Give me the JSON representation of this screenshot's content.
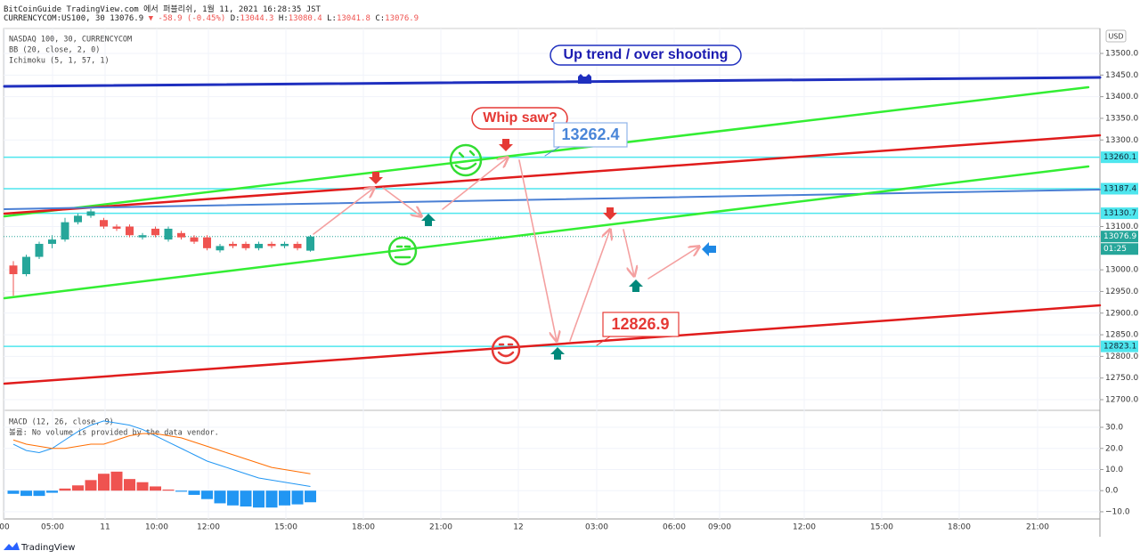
{
  "header": {
    "title": "BitCoinGuide TradingView.com 에서 퍼블리쉬, 1월 11, 2021 16:28:35 JST",
    "symbol": "CURRENCYCOM:US100, 30",
    "last": "13076.9",
    "change": "▼ -58.9 (-0.45%)",
    "ohlc": [
      "D:",
      "13044.3",
      "H:",
      "13080.4",
      "L:",
      "13041.8",
      "C:",
      "13076.9"
    ]
  },
  "legend": [
    "NASDAQ 100, 30, CURRENCYCOM",
    "BB (20, close, 2, 0)",
    "Ichimoku (5, 1, 57, 1)"
  ],
  "chart_data": [
    {
      "type": "candlestick",
      "unit": "USD",
      "ylim": [
        12677.4,
        13557.6
      ],
      "yticks": [
        {
          "value": 13500,
          "label": "13500.0"
        },
        {
          "value": 13450,
          "label": "13450.0"
        },
        {
          "value": 13400,
          "label": "13400.0"
        },
        {
          "value": 13350,
          "label": "13350.0"
        },
        {
          "value": 13300,
          "label": "13300.0"
        },
        {
          "value": 13100,
          "label": "13100.0"
        },
        {
          "value": 13000,
          "label": "13000.0"
        },
        {
          "value": 12950,
          "label": "12950.0"
        },
        {
          "value": 12900,
          "label": "12900.0"
        },
        {
          "value": 12850,
          "label": "12850.0"
        },
        {
          "value": 12800,
          "label": "12800.0"
        },
        {
          "value": 12750,
          "label": "12750.0"
        },
        {
          "value": 12700,
          "label": "12700.0"
        }
      ],
      "open": [
        13010,
        12990,
        13030,
        13060,
        13070,
        13110,
        13125,
        13115,
        13100,
        13100,
        13075,
        13095,
        13070,
        13085,
        13075,
        13075,
        13045,
        13060,
        13060,
        13050,
        13060,
        13055,
        13060,
        13044.3
      ],
      "high": [
        13020,
        13035,
        13065,
        13080,
        13120,
        13130,
        13140,
        13120,
        13105,
        13105,
        13085,
        13100,
        13100,
        13090,
        13080,
        13080,
        13060,
        13065,
        13065,
        13065,
        13065,
        13065,
        13065,
        13080.4
      ],
      "low": [
        12940,
        12985,
        13025,
        13050,
        13065,
        13105,
        13120,
        13095,
        13090,
        13075,
        13070,
        13075,
        13065,
        13070,
        13060,
        13045,
        13040,
        13050,
        13045,
        13045,
        13050,
        13050,
        13045,
        13041.8
      ],
      "close": [
        12990,
        13030,
        13060,
        13070,
        13110,
        13125,
        13135,
        13100,
        13095,
        13080,
        13080,
        13080,
        13095,
        13075,
        13065,
        13050,
        13055,
        13055,
        13050,
        13060,
        13055,
        13060,
        13050,
        13076.9
      ],
      "up_color": "#26a69a",
      "down_color": "#ef5350",
      "price_lines": [
        13260.1,
        13187.4,
        13130.7,
        12823.1
      ],
      "last_price": 13076.9,
      "countdown": "01:25",
      "x_labels": [
        "00",
        "05:00",
        "11",
        "10:00",
        "12:00",
        "15:00",
        "18:00",
        "21:00",
        "12",
        "03:00",
        "06:00",
        "09:00",
        "12:00",
        "15:00",
        "18:00",
        "21:00"
      ]
    },
    {
      "type": "macd",
      "title": "MACD (12, 26, close, 9)",
      "note": "볼륨: No volume is provided by the data vendor.",
      "ylim": [
        -13.4,
        37.6
      ],
      "yticks": [
        {
          "value": 30,
          "label": "30.0"
        },
        {
          "value": 20,
          "label": "20.0"
        },
        {
          "value": 10,
          "label": "10.0"
        },
        {
          "value": 0,
          "label": "0.0"
        },
        {
          "value": -10,
          "label": "−10.0"
        }
      ],
      "histogram": [
        -1.5,
        -2.5,
        -2.5,
        -1,
        1,
        2.5,
        5,
        8,
        9,
        5.5,
        4,
        2,
        0.5,
        -0.5,
        -2,
        -4,
        -6,
        -7,
        -7.5,
        -8,
        -8,
        -7,
        -6.5,
        -5.5
      ],
      "series": [
        {
          "name": "MACD",
          "color": "#2196f3",
          "values": [
            22,
            19,
            18,
            20,
            24,
            28,
            31,
            33,
            32,
            31,
            29,
            26,
            23,
            20,
            17,
            14,
            12,
            10,
            8,
            6,
            5,
            4,
            3,
            2
          ]
        },
        {
          "name": "Signal",
          "color": "#ff6d00",
          "values": [
            24,
            22,
            21,
            20,
            20,
            21,
            22,
            22,
            24,
            26,
            27,
            27,
            26,
            25,
            23,
            21,
            19,
            17,
            15,
            13,
            11,
            10,
            9,
            8
          ]
        }
      ]
    }
  ],
  "annotations": {
    "up_trend": "Up trend / over shooting",
    "whip_saw": "Whip saw?",
    "high_label": "13262.4",
    "low_label": "12826.9"
  },
  "footer": "TradingView"
}
